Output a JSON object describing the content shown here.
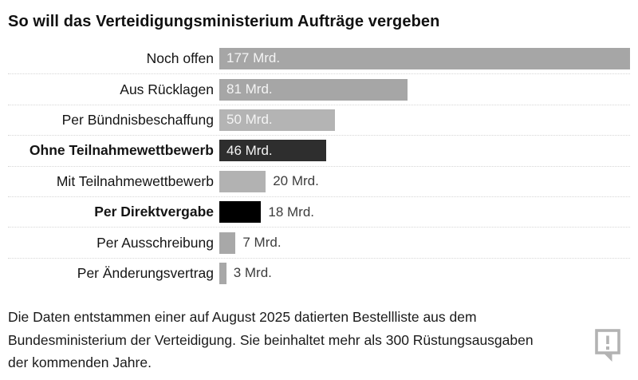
{
  "chart_data": {
    "type": "bar",
    "orientation": "horizontal",
    "title": "So will das Verteidigungsministerium Aufträge vergeben",
    "unit": "Mrd.",
    "xlim": [
      0,
      177
    ],
    "grid": "dotted-row-separators",
    "categories": [
      "Noch offen",
      "Aus Rücklagen",
      "Per Bündnisbeschaffung",
      "Ohne Teilnahmewettbewerb",
      "Mit Teilnahmewettbewerb",
      "Per Direktvergabe",
      "Per Ausschreibung",
      "Per Änderungsvertrag"
    ],
    "values": [
      177,
      81,
      50,
      46,
      20,
      18,
      7,
      3
    ],
    "rows": [
      {
        "label": "Noch offen",
        "value": 177,
        "value_label": "177 Mrd.",
        "bold": false,
        "bar_color": "#a6a6a6",
        "value_inside": true
      },
      {
        "label": "Aus Rücklagen",
        "value": 81,
        "value_label": "81 Mrd.",
        "bold": false,
        "bar_color": "#a6a6a6",
        "value_inside": true
      },
      {
        "label": "Per Bündnisbeschaffung",
        "value": 50,
        "value_label": "50 Mrd.",
        "bold": false,
        "bar_color": "#b4b4b4",
        "value_inside": true
      },
      {
        "label": "Ohne Teilnahmewettbewerb",
        "value": 46,
        "value_label": "46 Mrd.",
        "bold": true,
        "bar_color": "#2e2e2e",
        "value_inside": true
      },
      {
        "label": "Mit Teilnahmewettbewerb",
        "value": 20,
        "value_label": "20 Mrd.",
        "bold": false,
        "bar_color": "#b2b2b2",
        "value_inside": false
      },
      {
        "label": "Per Direktvergabe",
        "value": 18,
        "value_label": "18 Mrd.",
        "bold": true,
        "bar_color": "#000000",
        "value_inside": false
      },
      {
        "label": "Per Ausschreibung",
        "value": 7,
        "value_label": "7 Mrd.",
        "bold": false,
        "bar_color": "#a8a8a8",
        "value_inside": false
      },
      {
        "label": "Per Änderungsvertrag",
        "value": 3,
        "value_label": "3 Mrd.",
        "bold": false,
        "bar_color": "#a8a8a8",
        "value_inside": false
      }
    ]
  },
  "footer": {
    "lines": [
      "Die Daten entstammen einer auf August 2025 datierten Bestellliste aus dem",
      "Bundesministerium der Verteidigung. Sie beinhaltet mehr als 300 Rüstungsausgaben",
      "der kommenden Jahre."
    ]
  },
  "icon": {
    "name": "feedback-bubble-exclamation",
    "color": "#b3b3b3"
  }
}
